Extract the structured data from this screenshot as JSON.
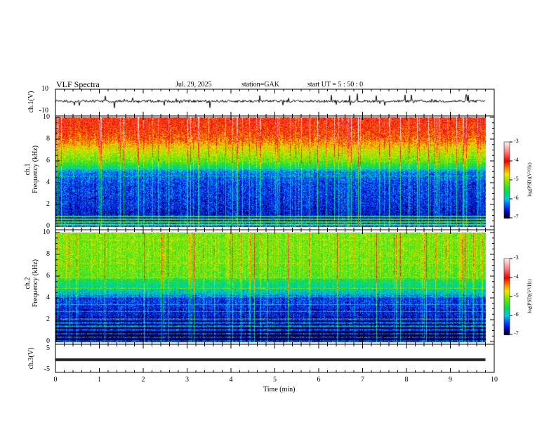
{
  "header": {
    "title": "VLF  Spectra",
    "date": "Jul.  29,  2025",
    "station": "station=GAK",
    "start": "start  UT  =   5  : 50 : 0"
  },
  "chart_data": [
    {
      "type": "line",
      "name": "ch1-waveform",
      "ylabel": "ch.1(V)",
      "ylim": [
        -10,
        10
      ],
      "yticks": [
        "10",
        "-10"
      ],
      "xlim": [
        0,
        10
      ],
      "data_extent_min": [
        0,
        9.8
      ],
      "description_values": {
        "baseline_V": 0,
        "typical_noise_V": 1.5,
        "spike_max_V": 7
      }
    },
    {
      "type": "heatmap",
      "name": "ch1-spectrogram",
      "ylabel": "ch.1\nFrequency  (kHz)",
      "ylabel_lines": [
        "ch.1",
        "Frequency  (kHz)"
      ],
      "ylim": [
        0,
        10
      ],
      "yticks": [
        "0",
        "2",
        "4",
        "6",
        "8",
        "10"
      ],
      "xlim": [
        0,
        10
      ],
      "colorbar": {
        "label": "log(PSD)(V²/Hz)",
        "range": [
          -7,
          -3
        ],
        "ticks": [
          "-3",
          "-4",
          "-5",
          "-6",
          "-7"
        ]
      },
      "profile_kHz_logPSD": [
        [
          0,
          -6.2
        ],
        [
          1,
          -6.6
        ],
        [
          2,
          -6.5
        ],
        [
          4,
          -6.4
        ],
        [
          5,
          -6.2
        ],
        [
          5.5,
          -5.6
        ],
        [
          6,
          -5.2
        ],
        [
          7,
          -4.8
        ],
        [
          8,
          -4.3
        ],
        [
          9,
          -4.1
        ],
        [
          10,
          -4.0
        ]
      ]
    },
    {
      "type": "heatmap",
      "name": "ch2-spectrogram",
      "ylabel_lines": [
        "ch.2",
        "Frequency  (kHz)"
      ],
      "ylim": [
        0,
        10
      ],
      "yticks": [
        "0",
        "2",
        "4",
        "6",
        "8",
        "10"
      ],
      "xlim": [
        0,
        10
      ],
      "colorbar": {
        "label": "log(PSD)(V²/Hz)",
        "range": [
          -7,
          -3
        ],
        "ticks": [
          "-3",
          "-4",
          "-5",
          "-6",
          "-7"
        ]
      },
      "profile_kHz_logPSD": [
        [
          0,
          -6.8
        ],
        [
          2,
          -6.6
        ],
        [
          4,
          -6.4
        ],
        [
          4.5,
          -5.9
        ],
        [
          5.5,
          -5.6
        ],
        [
          6,
          -5.2
        ],
        [
          8,
          -5.1
        ],
        [
          10,
          -5.1
        ]
      ]
    },
    {
      "type": "line",
      "name": "ch3-waveform",
      "ylabel": "ch.3(V)",
      "ylim": [
        -5,
        5
      ],
      "yticks": [
        "5",
        "-5"
      ],
      "xlim": [
        0,
        10
      ],
      "data_extent_min": [
        0,
        9.8
      ],
      "description_values": {
        "level_V": -1
      }
    }
  ],
  "xaxis": {
    "label": "Time  (min)",
    "ticks": [
      "0",
      "1",
      "2",
      "3",
      "4",
      "5",
      "6",
      "7",
      "8",
      "9",
      "10"
    ]
  },
  "colors": {
    "axis": "#000000"
  }
}
